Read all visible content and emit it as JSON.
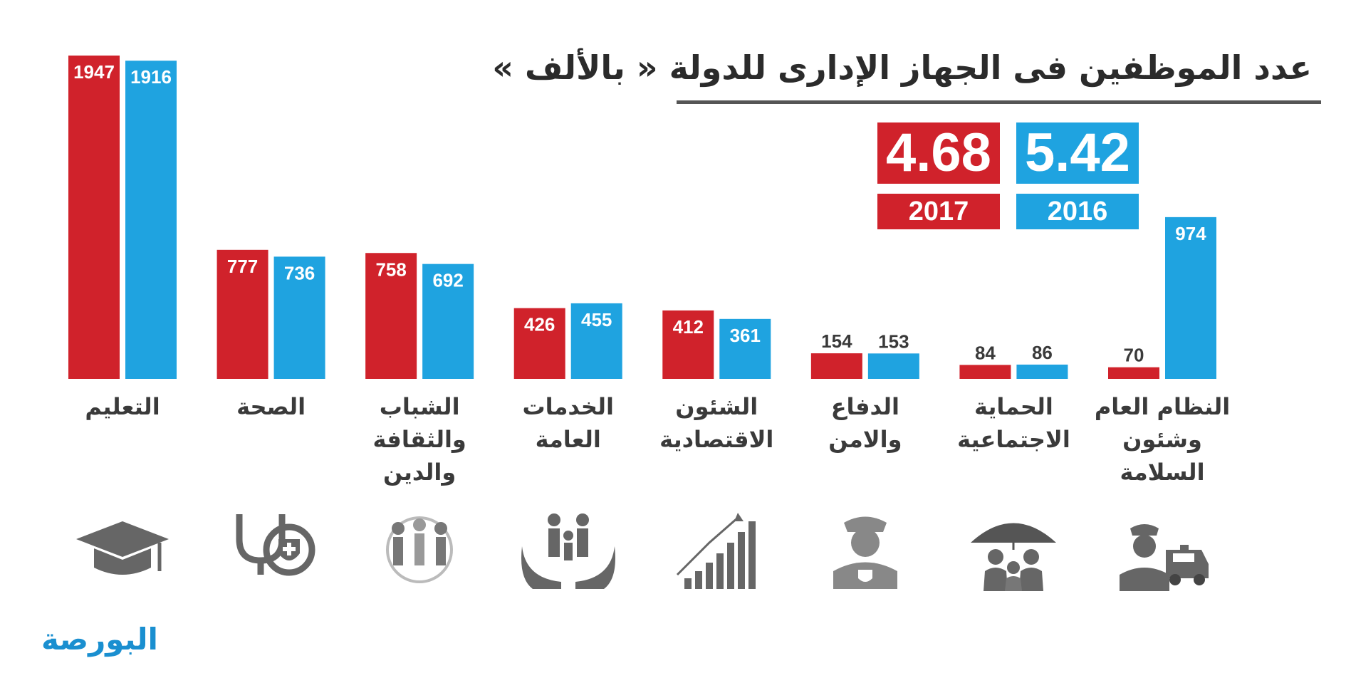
{
  "title": "عدد الموظفين فى الجهاز الإدارى للدولة « بالألف »",
  "totals": [
    {
      "year": "2017",
      "value": "4.68",
      "color": "#d0222b"
    },
    {
      "year": "2016",
      "value": "5.42",
      "color": "#1fa3e0"
    }
  ],
  "chart_data": {
    "type": "bar",
    "categories": [
      "التعليم",
      "الصحة",
      "الشباب\nوالثقافة\nوالدين",
      "الخدمات\nالعامة",
      "الشئون\nالاقتصادية",
      "الدفاع\nوالامن",
      "الحماية\nالاجتماعية",
      "النظام العام\nوشئون السلامة"
    ],
    "series": [
      {
        "name": "2017",
        "color": "#d0222b",
        "values": [
          1947,
          777,
          758,
          426,
          412,
          154,
          84,
          70
        ]
      },
      {
        "name": "2016",
        "color": "#1fa3e0",
        "values": [
          1916,
          736,
          692,
          455,
          361,
          153,
          86,
          974
        ]
      }
    ],
    "ylim": [
      0,
      1947
    ],
    "grid": false,
    "data_labels": true
  },
  "icons": [
    "graduation-cap-icon",
    "stethoscope-shield-icon",
    "people-circle-icon",
    "family-hands-icon",
    "growth-chart-icon",
    "police-officer-icon",
    "family-umbrella-icon",
    "police-car-icon"
  ],
  "logo": {
    "text": "البورصة"
  }
}
